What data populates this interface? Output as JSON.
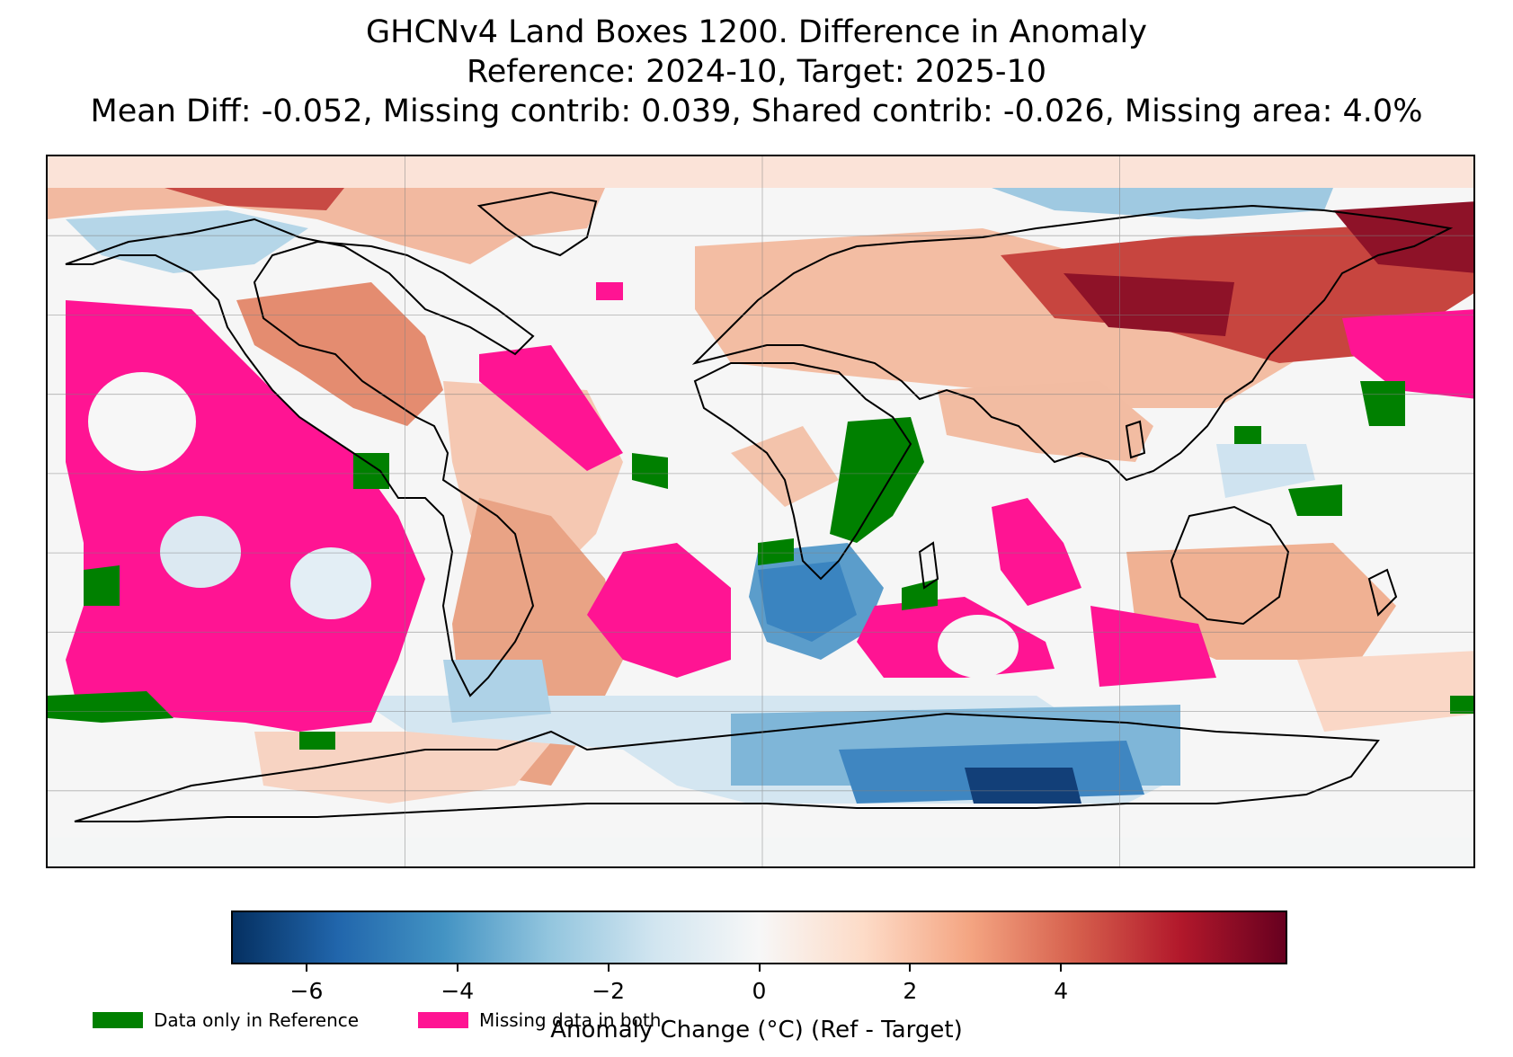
{
  "title": {
    "line1": "GHCNv4 Land Boxes 1200. Difference in Anomaly",
    "line2": "Reference: 2024-10, Target: 2025-10",
    "line3": "Mean Diff: -0.052, Missing contrib: 0.039, Shared contrib: -0.026, Missing area: 4.0%"
  },
  "colorbar": {
    "label": "Anomaly Change (°C) (Ref - Target)",
    "vmin": -7,
    "vmax": 7,
    "ticks": [
      {
        "value": -6,
        "label": "−6"
      },
      {
        "value": -4,
        "label": "−4"
      },
      {
        "value": -2,
        "label": "−2"
      },
      {
        "value": 0,
        "label": "0"
      },
      {
        "value": 2,
        "label": "2"
      },
      {
        "value": 4,
        "label": "4"
      }
    ],
    "colormap": "RdBu_r",
    "stops": [
      "#053061",
      "#2166ac",
      "#4393c3",
      "#92c5de",
      "#d1e5f0",
      "#f7f7f7",
      "#fddbc7",
      "#f4a582",
      "#d6604d",
      "#b2182b",
      "#67001f"
    ]
  },
  "legend": [
    {
      "label": "Data only in Reference",
      "color": "#008000"
    },
    {
      "label": "Missing data in both",
      "color": "#ff1493"
    }
  ],
  "map": {
    "projection": "plate-carree",
    "lon_range": [
      -180,
      180
    ],
    "lat_range": [
      -90,
      90
    ],
    "grid_spacing_deg": [
      90,
      20
    ],
    "background": "#f6f6f6"
  }
}
